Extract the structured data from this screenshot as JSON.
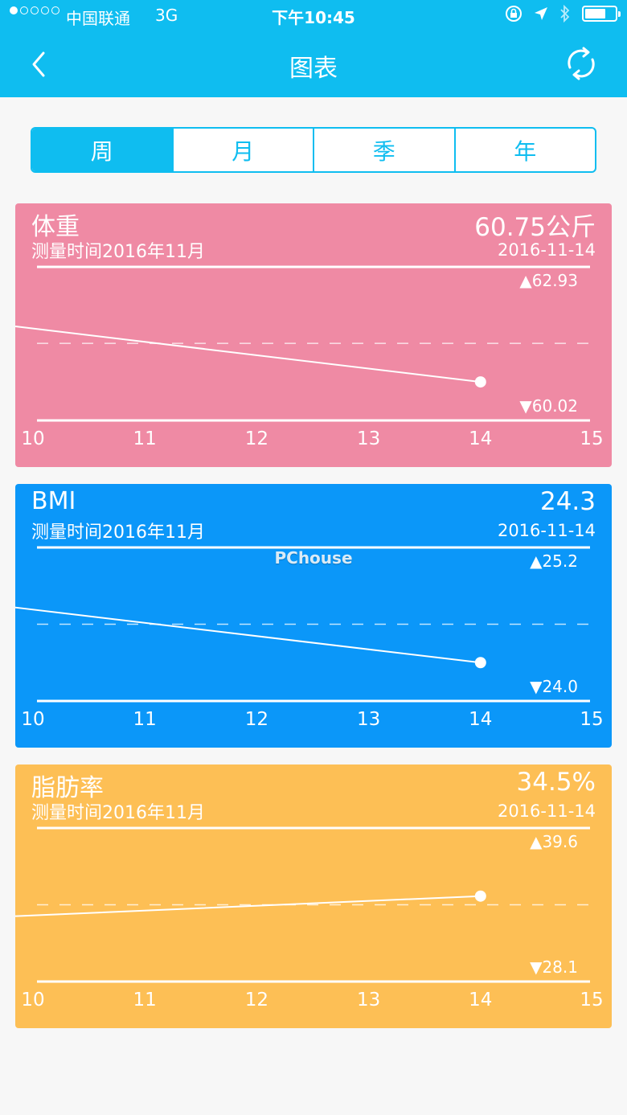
{
  "status_bar": {
    "carrier": "中国联通",
    "network": "3G",
    "time": "下午10:45"
  },
  "nav": {
    "title": "图表",
    "back_icon": "chevron-left-icon",
    "refresh_icon": "refresh-icon"
  },
  "tabs": [
    {
      "label": "周",
      "active": true
    },
    {
      "label": "月",
      "active": false
    },
    {
      "label": "季",
      "active": false
    },
    {
      "label": "年",
      "active": false
    }
  ],
  "watermark": "PChouse",
  "cards": [
    {
      "name": "体重",
      "subtitle": "测量时间2016年11月",
      "value": "60.75公斤",
      "date": "2016-11-14",
      "max_label": "▲62.93",
      "min_label": "▼60.02",
      "color": "#ef8aa4",
      "chart_data": {
        "type": "line",
        "x": [
          9.85,
          14
        ],
        "y": [
          61.8,
          60.75
        ],
        "xticks": [
          "10",
          "11",
          "12",
          "13",
          "14",
          "15"
        ],
        "xlim": [
          10,
          15
        ],
        "ylim": [
          60.02,
          62.93
        ],
        "reference_line": 61.48
      }
    },
    {
      "name": "BMI",
      "subtitle": "测量时间2016年11月",
      "value": "24.3",
      "date": "2016-11-14",
      "max_label": "▲25.2",
      "min_label": "▼24.0",
      "color": "#0b97f9",
      "chart_data": {
        "type": "line",
        "x": [
          9.85,
          14
        ],
        "y": [
          24.73,
          24.3
        ],
        "xticks": [
          "10",
          "11",
          "12",
          "13",
          "14",
          "15"
        ],
        "xlim": [
          10,
          15
        ],
        "ylim": [
          24.0,
          25.2
        ],
        "reference_line": 24.6
      }
    },
    {
      "name": "脂肪率",
      "subtitle": "测量时间2016年11月",
      "value": "34.5%",
      "date": "2016-11-14",
      "max_label": "▲39.6",
      "min_label": "▼28.1",
      "color": "#fdbf55",
      "chart_data": {
        "type": "line",
        "x": [
          9.85,
          14
        ],
        "y": [
          33.0,
          34.5
        ],
        "xticks": [
          "10",
          "11",
          "12",
          "13",
          "14",
          "15"
        ],
        "xlim": [
          10,
          15
        ],
        "ylim": [
          28.1,
          39.6
        ],
        "reference_line": 33.85
      }
    }
  ]
}
